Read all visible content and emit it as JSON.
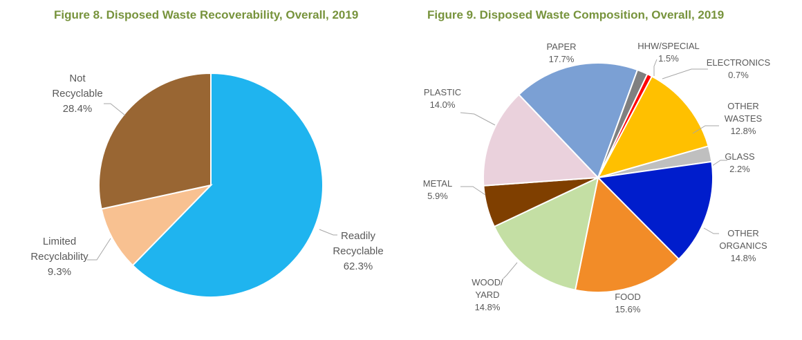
{
  "chart_data": [
    {
      "type": "pie",
      "title": "Figure 8. Disposed Waste Recoverability, Overall, 2019",
      "slices": [
        {
          "label": [
            "Readily",
            "Recyclable"
          ],
          "value": 62.3,
          "value_label": "62.3%",
          "color": "#1fb4ef"
        },
        {
          "label": [
            "Limited",
            "Recyclability"
          ],
          "value": 9.3,
          "value_label": "9.3%",
          "color": "#f8c191"
        },
        {
          "label": [
            "Not",
            "Recyclable"
          ],
          "value": 28.4,
          "value_label": "28.4%",
          "color": "#996633"
        }
      ]
    },
    {
      "type": "pie",
      "title": "Figure 9. Disposed Waste Composition, Overall, 2019",
      "slices": [
        {
          "label": [
            "OTHER",
            "WASTES"
          ],
          "value": 12.8,
          "value_label": "12.8%",
          "color": "#ffc000"
        },
        {
          "label": [
            "GLASS"
          ],
          "value": 2.2,
          "value_label": "2.2%",
          "color": "#bfbfbf"
        },
        {
          "label": [
            "OTHER",
            "ORGANICS"
          ],
          "value": 14.8,
          "value_label": "14.8%",
          "color": "#001dcc"
        },
        {
          "label": [
            "FOOD"
          ],
          "value": 15.6,
          "value_label": "15.6%",
          "color": "#f28c28"
        },
        {
          "label": [
            "WOOD/",
            "YARD"
          ],
          "value": 14.8,
          "value_label": "14.8%",
          "color": "#c4dfa4"
        },
        {
          "label": [
            "METAL"
          ],
          "value": 5.9,
          "value_label": "5.9%",
          "color": "#7f3f00"
        },
        {
          "label": [
            "PLASTIC"
          ],
          "value": 14.0,
          "value_label": "14.0%",
          "color": "#ead1dc"
        },
        {
          "label": [
            "PAPER"
          ],
          "value": 17.7,
          "value_label": "17.7%",
          "color": "#7ba0d4"
        },
        {
          "label": [
            "HHW/SPECIAL"
          ],
          "value": 1.5,
          "value_label": "1.5%",
          "color": "#808080"
        },
        {
          "label": [
            "ELECTRONICS"
          ],
          "value": 0.7,
          "value_label": "0.7%",
          "color": "#ff0000"
        }
      ]
    }
  ]
}
